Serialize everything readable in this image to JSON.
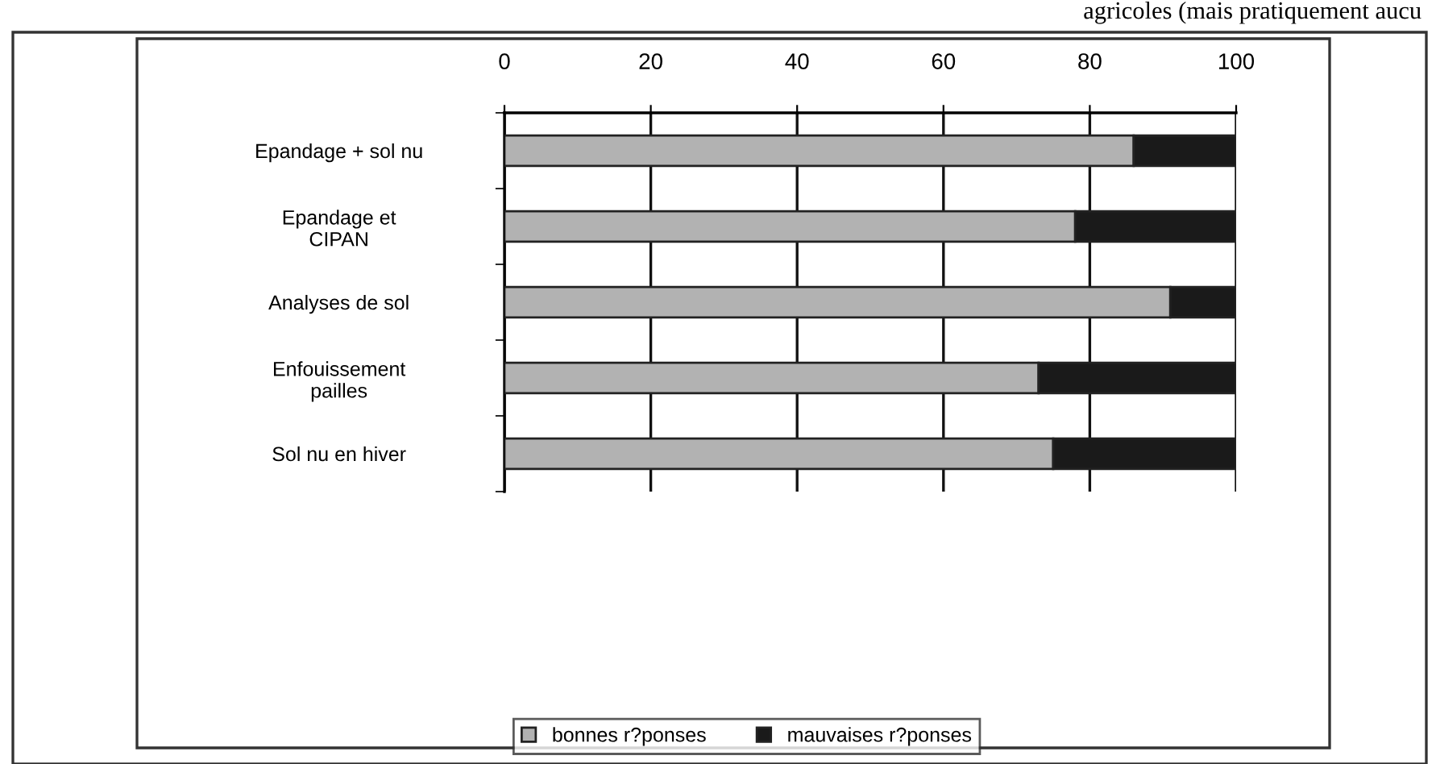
{
  "chart_data": {
    "type": "bar",
    "orientation": "horizontal",
    "stacked": true,
    "categories": [
      "Epandage + sol nu",
      "Epandage et\nCIPAN",
      "Analyses de sol",
      "Enfouissement\npailles",
      "Sol nu en hiver"
    ],
    "series": [
      {
        "name": "bonnes r?ponses",
        "color": "#b2b2b2",
        "values": [
          86,
          78,
          91,
          73,
          75
        ]
      },
      {
        "name": "mauvaises r?ponses",
        "color": "#1a1a1a",
        "values": [
          14,
          22,
          9,
          27,
          25
        ]
      }
    ],
    "xlim": [
      0,
      100
    ],
    "xticks": [
      0,
      20,
      40,
      60,
      80,
      100
    ],
    "grid": "x",
    "legend": "bottom",
    "annotations": [
      "agricoles (mais pratiquement aucu"
    ]
  }
}
